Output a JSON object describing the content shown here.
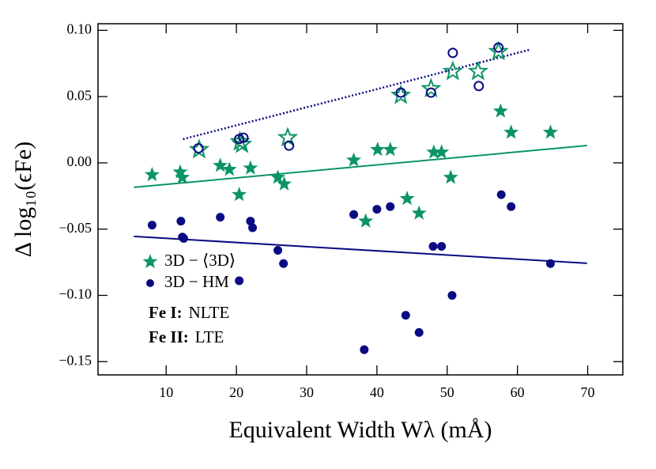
{
  "chart_data": {
    "type": "scatter",
    "x_label": "Equivalent Width Wλ (mÅ)",
    "y_label": "Δ log₁₀(ϵFe)",
    "xlim": [
      0.3,
      75
    ],
    "ylim": [
      -0.16,
      0.105
    ],
    "xticks": [
      10,
      20,
      30,
      40,
      50,
      60,
      70
    ],
    "yticks": [
      {
        "value": 0.1,
        "label": "0.10"
      },
      {
        "value": 0.05,
        "label": "0.05"
      },
      {
        "value": 0,
        "label": "0.00"
      },
      {
        "value": -0.05,
        "label": "−0.05"
      },
      {
        "value": -0.1,
        "label": "−0.10"
      },
      {
        "value": -0.15,
        "label": "−0.15"
      }
    ],
    "series": [
      {
        "name": "3D − ⟨3D⟩",
        "color": "#0b9467",
        "marker": "star",
        "filled": true,
        "x": [
          8.0,
          12.0,
          12.3,
          17.7,
          19.0,
          20.4,
          22.0,
          25.9,
          26.8,
          36.7,
          38.4,
          40.1,
          41.9,
          44.3,
          46.0,
          48.1,
          49.2,
          50.5,
          57.6,
          59.1,
          64.7
        ],
        "values": [
          -0.009,
          -0.007,
          -0.011,
          -0.002,
          -0.005,
          -0.024,
          -0.004,
          -0.011,
          -0.016,
          0.002,
          -0.044,
          0.01,
          0.01,
          -0.027,
          -0.038,
          0.008,
          0.008,
          -0.011,
          0.039,
          0.023,
          0.023
        ]
      },
      {
        "name": "3D − HM",
        "color": "#0a0a82",
        "marker": "circle",
        "filled": true,
        "x": [
          8.0,
          12.1,
          12.3,
          12.5,
          17.7,
          20.4,
          22.0,
          22.3,
          25.9,
          26.7,
          36.7,
          38.2,
          40.0,
          41.9,
          44.1,
          46.0,
          48.0,
          49.2,
          50.7,
          57.7,
          59.1,
          64.7
        ],
        "values": [
          -0.047,
          -0.044,
          -0.056,
          -0.057,
          -0.041,
          -0.089,
          -0.044,
          -0.049,
          -0.066,
          -0.076,
          -0.039,
          -0.141,
          -0.035,
          -0.033,
          -0.115,
          -0.128,
          -0.063,
          -0.063,
          -0.1,
          -0.024,
          -0.033,
          -0.076
        ]
      },
      {
        "color": "#0b9467",
        "marker": "star",
        "filled": false,
        "x": [
          14.7,
          20.5,
          20.8,
          27.3,
          43.4,
          47.7,
          50.8,
          54.4,
          57.3
        ],
        "values": [
          0.01,
          0.016,
          0.014,
          0.019,
          0.051,
          0.056,
          0.069,
          0.069,
          0.084
        ]
      },
      {
        "color": "#0a0a82",
        "marker": "circle",
        "filled": false,
        "x": [
          14.6,
          20.4,
          21.0,
          27.5,
          43.4,
          47.7,
          50.8,
          54.5,
          57.3
        ],
        "values": [
          0.011,
          0.018,
          0.019,
          0.013,
          0.053,
          0.053,
          0.083,
          0.058,
          0.087
        ]
      }
    ],
    "fit_lines": [
      {
        "color": "#0b9467",
        "style": "solid",
        "x": [
          5.4,
          69.9
        ],
        "values": [
          -0.0185,
          0.0131
        ]
      },
      {
        "color": "#0a0a82",
        "style": "solid",
        "x": [
          5.4,
          69.9
        ],
        "values": [
          -0.0555,
          -0.0758
        ]
      },
      {
        "color": "#0a0a82",
        "style": "dotted",
        "x": [
          12.4,
          61.7
        ],
        "values": [
          0.0179,
          0.0853
        ]
      }
    ],
    "annotations": [
      {
        "species": "Fe I:",
        "mode": "NLTE"
      },
      {
        "species": "Fe II:",
        "mode": "LTE"
      }
    ]
  }
}
